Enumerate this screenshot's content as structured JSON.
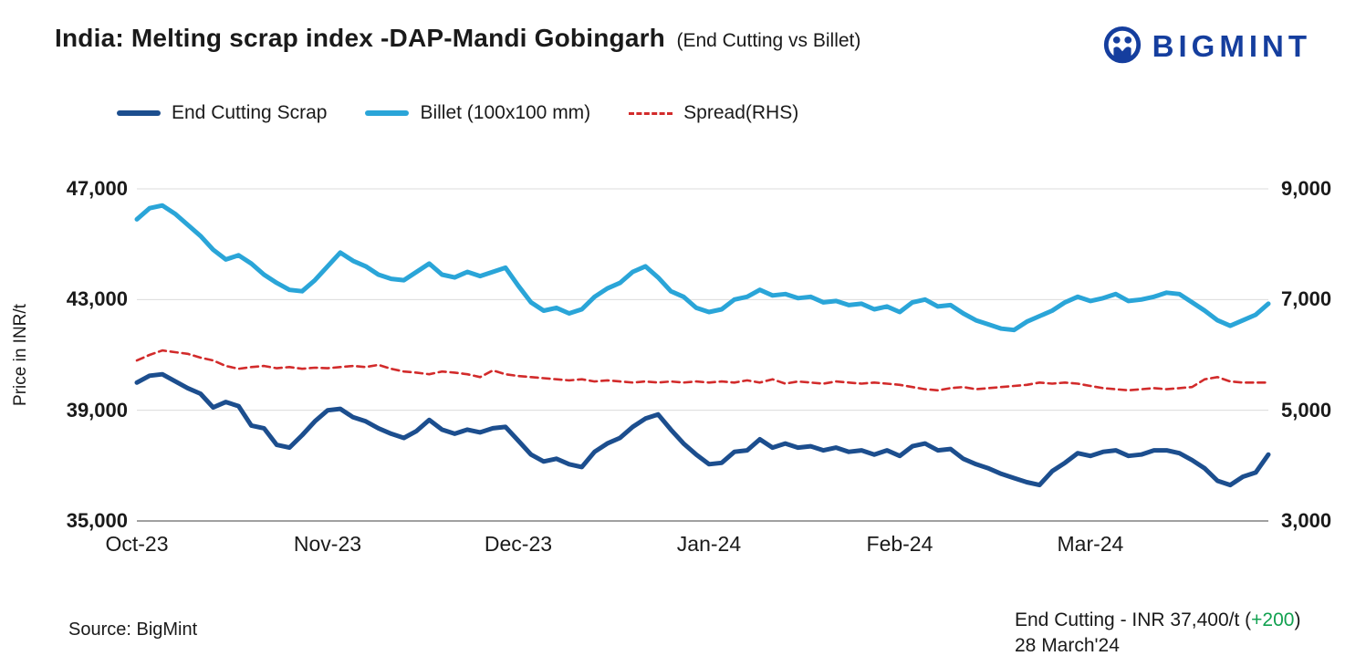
{
  "header": {
    "title": "India: Melting scrap index -DAP-Mandi Gobingarh",
    "subtitle": "(End Cutting vs Billet)",
    "brand": "BIGMINT",
    "brand_color": "#153e9e"
  },
  "footer": {
    "source": "Source: BigMint",
    "annotation_prefix": "End Cutting - INR 37,400/t (",
    "annotation_change": "+200",
    "annotation_suffix": ")",
    "annotation_date": "28 March'24",
    "change_color": "#12a150"
  },
  "chart_data": {
    "type": "line",
    "title": "India: Melting scrap index -DAP-Mandi Gobingarh (End Cutting vs Billet)",
    "ylabel": "Price in INR/t",
    "grid": true,
    "legend_position": "top",
    "x_categories": [
      "Oct-23",
      "Nov-23",
      "Dec-23",
      "Jan-24",
      "Feb-24",
      "Mar-24"
    ],
    "left_axis": {
      "range": [
        35000,
        47000
      ],
      "tick_values": [
        35000,
        39000,
        43000,
        47000
      ],
      "ticks": [
        "35,000",
        "39,000",
        "43,000",
        "47,000"
      ]
    },
    "right_axis": {
      "range": [
        3000,
        9000
      ],
      "tick_values": [
        3000,
        5000,
        7000,
        9000
      ],
      "ticks": [
        "3,000",
        "5,000",
        "7,000",
        "9,000"
      ]
    },
    "series": [
      {
        "name": "Spread(RHS)",
        "axis": "right",
        "color": "#d22b2b",
        "dash": true,
        "values": [
          5900,
          6000,
          6080,
          6050,
          6020,
          5950,
          5900,
          5800,
          5750,
          5780,
          5800,
          5760,
          5780,
          5750,
          5770,
          5760,
          5780,
          5800,
          5780,
          5820,
          5750,
          5700,
          5680,
          5650,
          5700,
          5680,
          5650,
          5600,
          5720,
          5650,
          5620,
          5600,
          5580,
          5560,
          5540,
          5560,
          5520,
          5540,
          5520,
          5500,
          5520,
          5500,
          5520,
          5500,
          5520,
          5500,
          5520,
          5500,
          5540,
          5500,
          5560,
          5480,
          5520,
          5500,
          5480,
          5520,
          5500,
          5480,
          5500,
          5480,
          5460,
          5420,
          5380,
          5360,
          5400,
          5420,
          5380,
          5400,
          5420,
          5440,
          5460,
          5500,
          5480,
          5500,
          5480,
          5440,
          5400,
          5380,
          5360,
          5380,
          5400,
          5380,
          5400,
          5420,
          5560,
          5600,
          5520,
          5500,
          5500,
          5500
        ]
      },
      {
        "name": "Billet (100x100 mm)",
        "axis": "left",
        "color": "#2aa5d8",
        "dash": false,
        "values": [
          45900,
          46300,
          46400,
          46100,
          45700,
          45300,
          44800,
          44450,
          44600,
          44300,
          43900,
          43600,
          43350,
          43300,
          43700,
          44200,
          44700,
          44400,
          44200,
          43900,
          43750,
          43700,
          44000,
          44300,
          43900,
          43800,
          44000,
          43850,
          44000,
          44150,
          43500,
          42900,
          42600,
          42700,
          42500,
          42650,
          43100,
          43400,
          43600,
          44000,
          44200,
          43800,
          43300,
          43100,
          42700,
          42550,
          42650,
          43000,
          43100,
          43350,
          43150,
          43200,
          43050,
          43100,
          42900,
          42950,
          42800,
          42850,
          42650,
          42750,
          42550,
          42900,
          43000,
          42750,
          42800,
          42500,
          42250,
          42100,
          41950,
          41900,
          42200,
          42400,
          42600,
          42900,
          43100,
          42950,
          43050,
          43200,
          42950,
          43000,
          43100,
          43250,
          43200,
          42900,
          42600,
          42250,
          42050,
          42250,
          42450,
          42850
        ]
      },
      {
        "name": "End Cutting Scrap",
        "axis": "left",
        "color": "#1c4e8e",
        "dash": false,
        "values": [
          40000,
          40250,
          40300,
          40050,
          39800,
          39600,
          39100,
          39300,
          39150,
          38450,
          38350,
          37750,
          37650,
          38100,
          38600,
          39000,
          39050,
          38750,
          38600,
          38350,
          38150,
          38000,
          38250,
          38650,
          38300,
          38150,
          38300,
          38200,
          38350,
          38400,
          37900,
          37400,
          37150,
          37250,
          37050,
          36950,
          37500,
          37800,
          38000,
          38400,
          38700,
          38850,
          38300,
          37800,
          37400,
          37050,
          37100,
          37500,
          37550,
          37950,
          37650,
          37800,
          37650,
          37700,
          37550,
          37650,
          37500,
          37550,
          37400,
          37550,
          37350,
          37700,
          37800,
          37550,
          37600,
          37250,
          37050,
          36900,
          36700,
          36550,
          36400,
          36300,
          36800,
          37100,
          37450,
          37350,
          37500,
          37550,
          37350,
          37400,
          37550,
          37550,
          37450,
          37200,
          36900,
          36450,
          36300,
          36600,
          36750,
          37400
        ]
      }
    ],
    "legend_order": [
      "End Cutting Scrap",
      "Billet (100x100 mm)",
      "Spread(RHS)"
    ]
  }
}
